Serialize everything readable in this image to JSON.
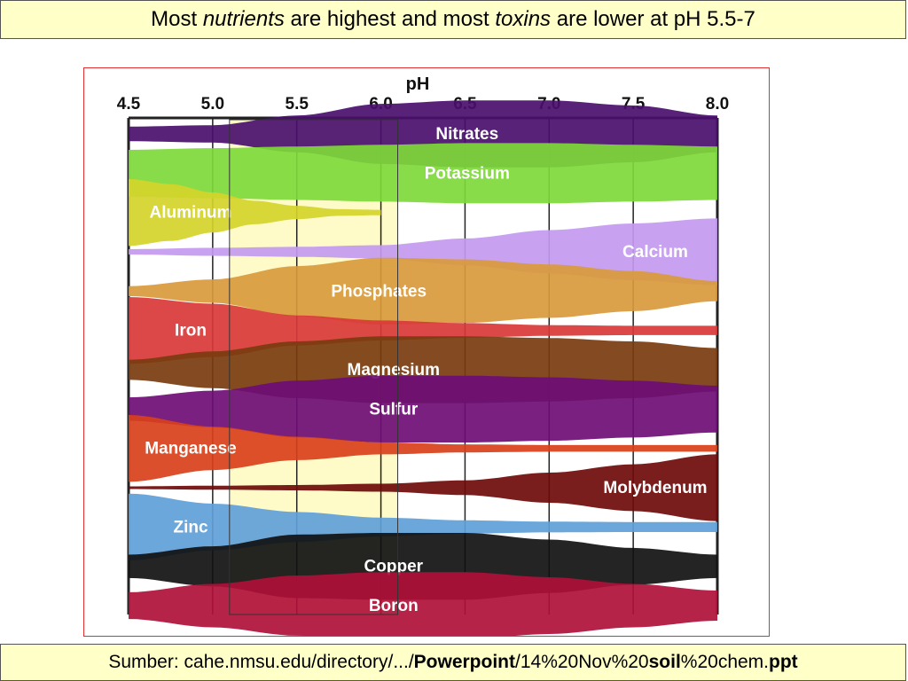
{
  "title": {
    "p1": "Most ",
    "p2": "nutrients",
    "p3": " are highest and most ",
    "p4": "toxins",
    "p5": " are lower at pH 5.5-7"
  },
  "source": {
    "p1": "Sumber: cahe.nmsu.edu/directory/.../",
    "p2": "Powerpoint",
    "p3": "/14%20Nov%20",
    "p4": "soil",
    "p5": "%20chem.",
    "p6": "ppt"
  },
  "chart_data": {
    "type": "area",
    "xlabel": "pH",
    "x_ticks": [
      4.5,
      5.0,
      5.5,
      6.0,
      6.5,
      7.0,
      7.5,
      8.0
    ],
    "x_tick_labels": [
      "4.5",
      "5.0",
      "5.5",
      "6.0",
      "6.5",
      "7.0",
      "7.5",
      "8.0"
    ],
    "xlim": [
      4.5,
      8.0
    ],
    "highlight_range": [
      5.1,
      6.1
    ],
    "highlight_color": "#fffbc8",
    "series": [
      {
        "name": "Nitrates",
        "color": "#4a0f6e",
        "x": [
          4.5,
          5.0,
          5.5,
          6.0,
          6.5,
          7.0,
          7.5,
          8.0
        ],
        "values": [
          0.22,
          0.26,
          0.55,
          0.9,
          1.0,
          1.0,
          0.85,
          0.55
        ]
      },
      {
        "name": "Potassium",
        "color": "#7ed93a",
        "x": [
          4.5,
          5.0,
          5.5,
          6.0,
          6.5,
          7.0,
          7.5,
          8.0
        ],
        "values": [
          0.7,
          0.75,
          0.8,
          0.85,
          0.9,
          0.9,
          0.85,
          0.8
        ]
      },
      {
        "name": "Aluminum",
        "color": "#d4d42a",
        "x": [
          4.5,
          4.75,
          5.0,
          5.25,
          5.5,
          5.75,
          6.0
        ],
        "values": [
          1.0,
          0.85,
          0.6,
          0.35,
          0.2,
          0.1,
          0.08
        ]
      },
      {
        "name": "Calcium",
        "color": "#c39af0",
        "x": [
          4.5,
          5.0,
          5.5,
          6.0,
          6.5,
          7.0,
          7.5,
          8.0
        ],
        "values": [
          0.08,
          0.12,
          0.15,
          0.2,
          0.4,
          0.65,
          0.85,
          1.0
        ]
      },
      {
        "name": "Phosphates",
        "color": "#d89a3c",
        "x": [
          4.5,
          5.0,
          5.5,
          6.0,
          6.5,
          7.0,
          7.5,
          8.0
        ],
        "values": [
          0.15,
          0.35,
          0.75,
          1.0,
          0.95,
          0.8,
          0.6,
          0.3
        ]
      },
      {
        "name": "Iron",
        "color": "#d93838",
        "x": [
          4.5,
          5.0,
          5.5,
          6.0,
          6.5,
          7.0,
          7.5,
          8.0
        ],
        "values": [
          1.0,
          0.8,
          0.45,
          0.3,
          0.22,
          0.16,
          0.14,
          0.14
        ]
      },
      {
        "name": "Magnesium",
        "color": "#7a3c10",
        "x": [
          4.5,
          5.0,
          5.5,
          6.0,
          6.5,
          7.0,
          7.5,
          8.0
        ],
        "values": [
          0.3,
          0.55,
          0.85,
          1.0,
          1.0,
          0.95,
          0.85,
          0.65
        ]
      },
      {
        "name": "Sulfur",
        "color": "#6e0d76",
        "x": [
          4.5,
          5.0,
          5.5,
          6.0,
          6.5,
          7.0,
          7.5,
          8.0
        ],
        "values": [
          0.35,
          0.55,
          0.85,
          1.0,
          1.0,
          0.95,
          0.85,
          0.7
        ]
      },
      {
        "name": "Manganese",
        "color": "#d9401a",
        "x": [
          4.5,
          5.0,
          5.5,
          6.0,
          6.5,
          7.0,
          7.5,
          8.0
        ],
        "values": [
          1.0,
          0.65,
          0.35,
          0.18,
          0.12,
          0.1,
          0.1,
          0.1
        ]
      },
      {
        "name": "Molybdenum",
        "color": "#6e0a0a",
        "x": [
          4.5,
          5.0,
          5.5,
          6.0,
          6.5,
          7.0,
          7.5,
          8.0
        ],
        "values": [
          0.04,
          0.06,
          0.08,
          0.12,
          0.22,
          0.45,
          0.7,
          1.0
        ]
      },
      {
        "name": "Zinc",
        "color": "#5fa0d8",
        "x": [
          4.5,
          5.0,
          5.5,
          6.0,
          6.5,
          7.0,
          7.5,
          8.0
        ],
        "values": [
          1.0,
          0.7,
          0.45,
          0.28,
          0.2,
          0.16,
          0.15,
          0.15
        ]
      },
      {
        "name": "Copper",
        "color": "#111111",
        "x": [
          4.5,
          5.0,
          5.5,
          6.0,
          6.5,
          7.0,
          7.5,
          8.0
        ],
        "values": [
          0.35,
          0.6,
          0.95,
          1.0,
          1.0,
          0.8,
          0.55,
          0.35
        ]
      },
      {
        "name": "Boron",
        "color": "#b0103a",
        "x": [
          4.5,
          5.0,
          5.5,
          6.0,
          6.5,
          7.0,
          7.5,
          8.0
        ],
        "values": [
          0.4,
          0.65,
          0.9,
          1.0,
          1.0,
          0.85,
          0.65,
          0.45
        ]
      }
    ]
  }
}
